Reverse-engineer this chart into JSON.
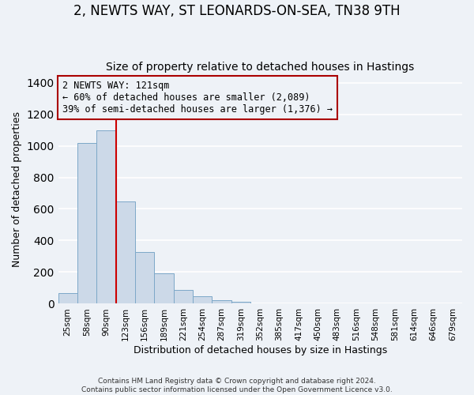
{
  "title": "2, NEWTS WAY, ST LEONARDS-ON-SEA, TN38 9TH",
  "subtitle": "Size of property relative to detached houses in Hastings",
  "xlabel": "Distribution of detached houses by size in Hastings",
  "ylabel": "Number of detached properties",
  "bar_labels": [
    "25sqm",
    "58sqm",
    "90sqm",
    "123sqm",
    "156sqm",
    "189sqm",
    "221sqm",
    "254sqm",
    "287sqm",
    "319sqm",
    "352sqm",
    "385sqm",
    "417sqm",
    "450sqm",
    "483sqm",
    "516sqm",
    "548sqm",
    "581sqm",
    "614sqm",
    "646sqm",
    "679sqm"
  ],
  "bar_values": [
    65,
    1020,
    1100,
    650,
    325,
    190,
    85,
    47,
    20,
    10,
    0,
    0,
    0,
    0,
    0,
    0,
    0,
    0,
    0,
    0,
    0
  ],
  "bar_color": "#ccd9e8",
  "bar_edge_color": "#7da8c8",
  "ylim": [
    0,
    1450
  ],
  "yticks": [
    0,
    200,
    400,
    600,
    800,
    1000,
    1200,
    1400
  ],
  "vline_color": "#cc0000",
  "annotation_title": "2 NEWTS WAY: 121sqm",
  "annotation_line1": "← 60% of detached houses are smaller (2,089)",
  "annotation_line2": "39% of semi-detached houses are larger (1,376) →",
  "annotation_box_color": "#aa0000",
  "footer1": "Contains HM Land Registry data © Crown copyright and database right 2024.",
  "footer2": "Contains public sector information licensed under the Open Government Licence v3.0.",
  "background_color": "#eef2f7",
  "grid_color": "#ffffff",
  "title_fontsize": 12,
  "subtitle_fontsize": 10
}
